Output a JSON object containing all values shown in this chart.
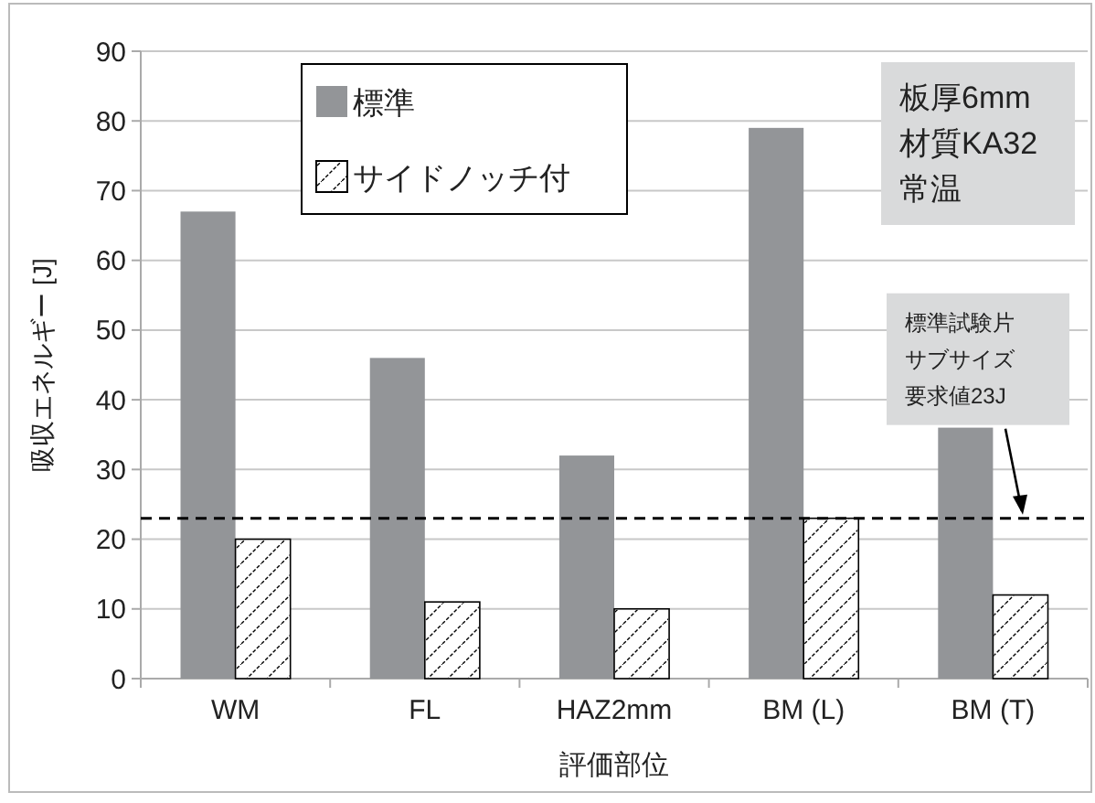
{
  "chart_data": {
    "type": "bar",
    "ylabel": "吸収エネルギー [J]",
    "xlabel": "評価部位",
    "categories": [
      "WM",
      "FL",
      "HAZ2mm",
      "BM (L)",
      "BM (T)"
    ],
    "series": [
      {
        "name": "標準",
        "color": "#939598",
        "values": [
          67,
          46,
          32,
          79,
          36
        ]
      },
      {
        "name": "サイドノッチ付",
        "color": "#ffffff",
        "values": [
          20,
          11,
          10,
          23,
          12
        ]
      }
    ],
    "ylim": [
      0,
      90
    ],
    "yticks": [
      0,
      10,
      20,
      30,
      40,
      50,
      60,
      70,
      80,
      90
    ],
    "grid": "y",
    "legend": "top left",
    "ref_lines": [
      {
        "axis": "y",
        "value": 23,
        "label": "標準試験片サブサイズ要求値23J",
        "line_style": "dashed",
        "color": "#000000"
      }
    ],
    "annotations": [
      "板厚6mm\n材質KA32\n常温"
    ]
  }
}
